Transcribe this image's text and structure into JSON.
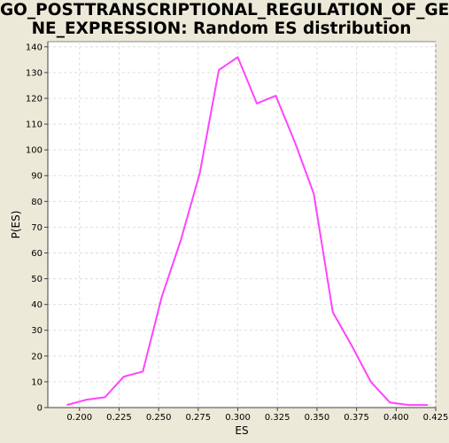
{
  "title_line1": "GO_POSTTRANSCRIPTIONAL_REGULATION_OF_GE",
  "title_line2": "NE_EXPRESSION: Random ES distribution",
  "chart_data": {
    "type": "line",
    "title": "GO_POSTTRANSCRIPTIONAL_REGULATION_OF_GENE_EXPRESSION: Random ES distribution",
    "xlabel": "ES",
    "ylabel": "P(ES)",
    "xlim": [
      0.18,
      0.425
    ],
    "ylim": [
      0,
      142
    ],
    "x_ticks": [
      "0.200",
      "0.225",
      "0.250",
      "0.275",
      "0.300",
      "0.325",
      "0.350",
      "0.375",
      "0.400",
      "0.425"
    ],
    "x_tick_values": [
      0.2,
      0.225,
      0.25,
      0.275,
      0.3,
      0.325,
      0.35,
      0.375,
      0.4,
      0.425
    ],
    "y_ticks": [
      "0",
      "10",
      "20",
      "30",
      "40",
      "50",
      "60",
      "70",
      "80",
      "90",
      "100",
      "110",
      "120",
      "130",
      "140"
    ],
    "y_tick_values": [
      0,
      10,
      20,
      30,
      40,
      50,
      60,
      70,
      80,
      90,
      100,
      110,
      120,
      130,
      140
    ],
    "grid": true,
    "line_color": "#ff44ff",
    "series": [
      {
        "x": [
          0.192,
          0.204,
          0.216,
          0.228,
          0.24,
          0.252,
          0.264,
          0.276,
          0.288,
          0.3,
          0.312,
          0.324,
          0.336,
          0.348,
          0.36,
          0.372,
          0.384,
          0.396,
          0.408,
          0.42
        ],
        "y": [
          1,
          3,
          4,
          12,
          14,
          43,
          65,
          91,
          131,
          136,
          118,
          121,
          103,
          83,
          37,
          24,
          10,
          2,
          1,
          1
        ]
      }
    ]
  }
}
